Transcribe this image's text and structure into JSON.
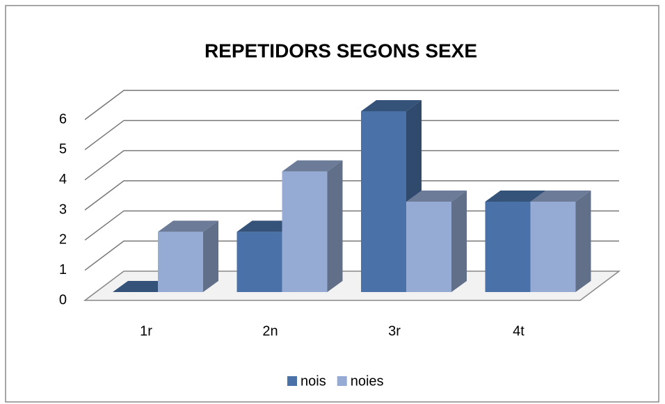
{
  "chart_data": {
    "type": "bar3d",
    "title": "REPETIDORS SEGONS SEXE",
    "categories": [
      "1r",
      "2n",
      "3r",
      "4t"
    ],
    "series": [
      {
        "name": "nois",
        "color": "#4a72a8",
        "values": [
          0,
          2,
          6,
          3
        ]
      },
      {
        "name": "noies",
        "color": "#95abd3",
        "values": [
          2,
          4,
          3,
          3
        ]
      }
    ],
    "ylim": [
      0,
      6
    ],
    "yticks": [
      0,
      1,
      2,
      3,
      4,
      5,
      6
    ],
    "grid": true,
    "legend": "bottom"
  }
}
